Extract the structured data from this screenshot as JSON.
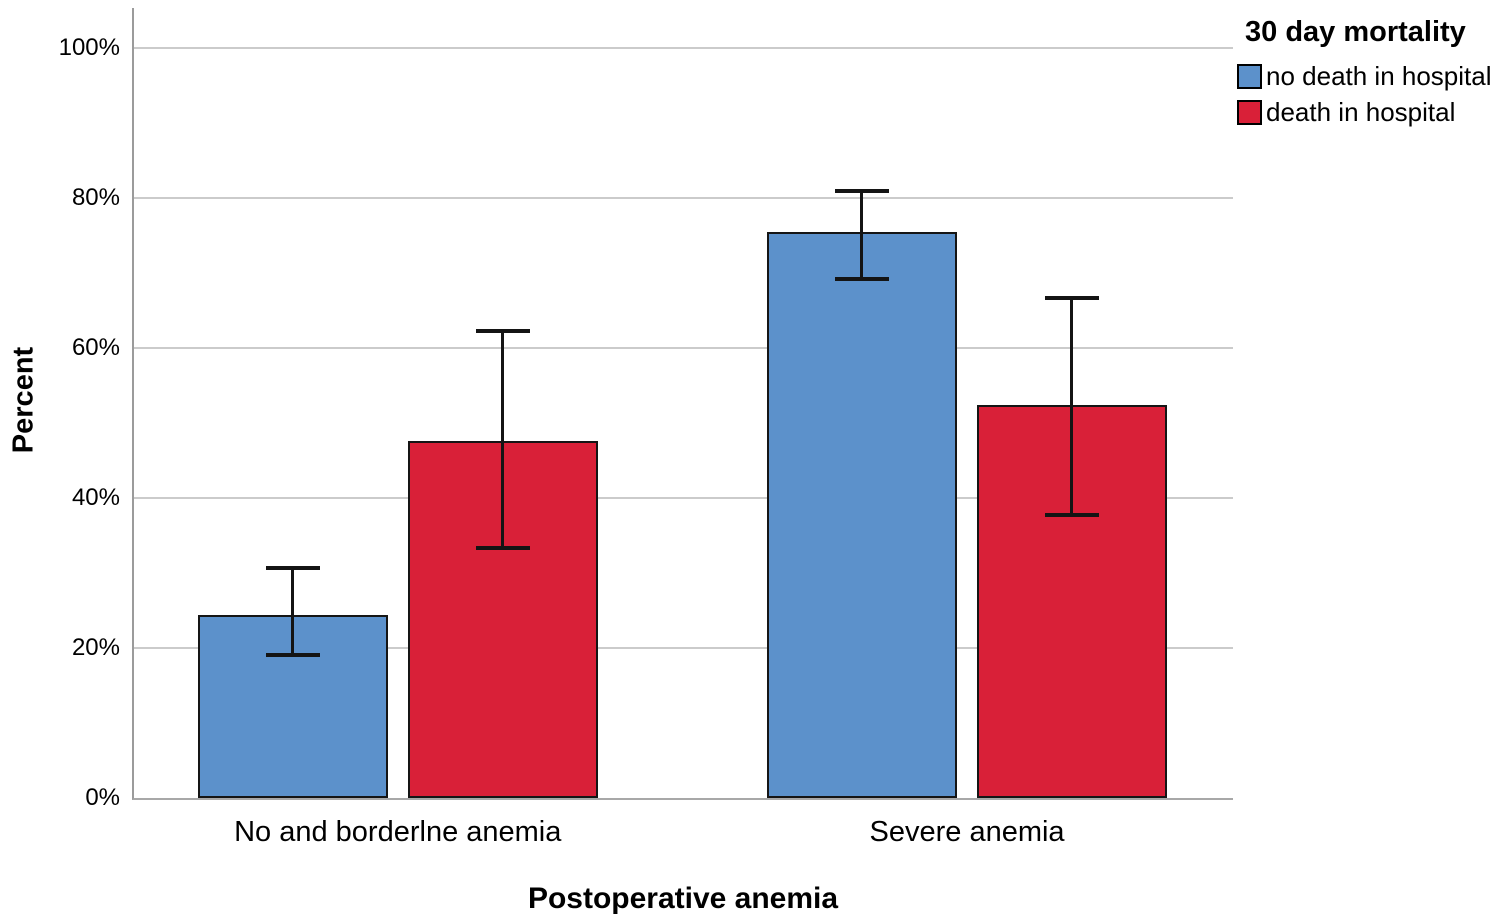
{
  "chart_data": {
    "type": "bar",
    "title": "",
    "xlabel": "Postoperative anemia",
    "ylabel": "Percent",
    "categories": [
      "No and borderlne anemia",
      "Severe anemia"
    ],
    "series": [
      {
        "name": "no death in hospital",
        "color": "#5C91CB",
        "values": [
          24.4,
          75.5
        ],
        "error_low": [
          18.8,
          68.9
        ],
        "error_high": [
          30.9,
          81.2
        ]
      },
      {
        "name": "death in hospital",
        "color": "#D92038",
        "values": [
          47.6,
          52.4
        ],
        "error_low": [
          33.1,
          37.5
        ],
        "error_high": [
          62.5,
          66.9
        ]
      }
    ],
    "ylim": [
      0,
      105
    ],
    "yticks": [
      0,
      20,
      40,
      60,
      80,
      100
    ],
    "ytick_labels": [
      "0%",
      "20%",
      "40%",
      "60%",
      "80%",
      "100%"
    ],
    "grid": true,
    "legend_title": "30 day mortality",
    "legend_position": "top-right"
  }
}
